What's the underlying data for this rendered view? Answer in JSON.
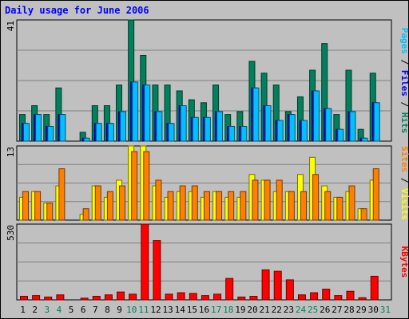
{
  "chart_data": [
    {
      "type": "bar",
      "title": "Daily usage for June 2006",
      "categories": [
        "1",
        "2",
        "3",
        "4",
        "5",
        "6",
        "7",
        "8",
        "9",
        "10",
        "11",
        "12",
        "13",
        "14",
        "15",
        "16",
        "17",
        "18",
        "19",
        "20",
        "21",
        "22",
        "23",
        "24",
        "25",
        "26",
        "27",
        "28",
        "29",
        "30",
        "31"
      ],
      "weekend_days": [
        "3",
        "4",
        "10",
        "11",
        "17",
        "18",
        "24",
        "25",
        "31"
      ],
      "ylim": [
        0,
        41
      ],
      "y_tick_label": "41",
      "series": [
        {
          "name": "Hits",
          "color": "#00805c",
          "values": [
            9,
            12,
            9,
            18,
            0,
            3,
            12,
            12,
            19,
            41,
            29,
            19,
            19,
            17,
            14,
            13,
            19,
            9,
            10,
            27,
            23,
            19,
            10,
            15,
            24,
            33,
            9,
            24,
            4,
            23,
            0
          ]
        },
        {
          "name": "Files",
          "color": "#0000ff",
          "values": [
            6,
            9,
            5,
            9,
            0,
            1,
            6,
            6,
            10,
            20,
            19,
            10,
            6,
            12,
            8,
            8,
            10,
            5,
            5,
            18,
            12,
            7,
            9,
            7,
            17,
            11,
            4,
            10,
            1,
            13,
            0
          ]
        },
        {
          "name": "Pages",
          "color": "#00c0ff",
          "values": [
            6,
            9,
            5,
            9,
            0,
            1,
            6,
            6,
            10,
            20,
            19,
            10,
            6,
            12,
            8,
            8,
            10,
            5,
            5,
            18,
            12,
            7,
            9,
            7,
            17,
            11,
            4,
            10,
            1,
            13,
            0
          ]
        }
      ],
      "y_side_labels": [
        {
          "text": "Pages",
          "color": "#00c0ff"
        },
        {
          "text": " / ",
          "color": "#000000"
        },
        {
          "text": "Files",
          "color": "#0000ff"
        },
        {
          "text": " / ",
          "color": "#000000"
        },
        {
          "text": "Hits",
          "color": "#00805c"
        }
      ]
    },
    {
      "type": "bar",
      "ylim": [
        0,
        13
      ],
      "y_tick_label": "13",
      "series": [
        {
          "name": "Visits",
          "color": "#ffff00",
          "values": [
            4,
            5,
            3,
            6,
            0,
            1,
            6,
            4,
            7,
            13,
            13,
            6,
            4,
            5,
            5,
            4,
            5,
            4,
            4,
            8,
            7,
            5,
            5,
            8,
            11,
            6,
            4,
            5,
            2,
            7,
            0
          ]
        },
        {
          "name": "Sites",
          "color": "#ff8000",
          "values": [
            5,
            5,
            3,
            9,
            0,
            2,
            6,
            5,
            6,
            12,
            12,
            7,
            5,
            6,
            6,
            5,
            5,
            5,
            5,
            7,
            7,
            7,
            5,
            5,
            8,
            5,
            4,
            6,
            2,
            9,
            0
          ]
        }
      ],
      "y_side_labels": [
        {
          "text": "Sites",
          "color": "#ff8000"
        },
        {
          "text": " / ",
          "color": "#000000"
        },
        {
          "text": "Visits",
          "color": "#ffff00"
        }
      ]
    },
    {
      "type": "bar",
      "ylim": [
        0,
        530
      ],
      "y_tick_label": "530",
      "series": [
        {
          "name": "KBytes",
          "color": "#ff0000",
          "values": [
            25,
            30,
            20,
            35,
            0,
            12,
            25,
            35,
            55,
            40,
            530,
            415,
            40,
            50,
            45,
            30,
            40,
            150,
            20,
            25,
            210,
            200,
            140,
            35,
            50,
            75,
            30,
            60,
            15,
            165,
            0
          ]
        }
      ],
      "y_side_labels": [
        {
          "text": "KBytes",
          "color": "#ff0000"
        }
      ]
    }
  ]
}
